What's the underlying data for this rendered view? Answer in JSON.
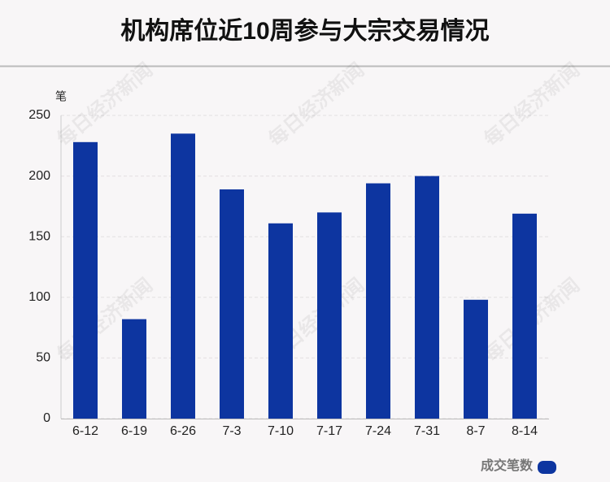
{
  "chart_data": {
    "type": "bar",
    "title": "机构席位近10周参与大宗交易情况",
    "y_unit": "笔",
    "watermark": "每日经济新闻",
    "categories": [
      "6-12",
      "6-19",
      "6-26",
      "7-3",
      "7-10",
      "7-17",
      "7-24",
      "7-31",
      "8-7",
      "8-14"
    ],
    "series": [
      {
        "name": "成交笔数",
        "color": "#0d35a0",
        "values": [
          228,
          82,
          235,
          189,
          161,
          170,
          194,
          200,
          98,
          169
        ]
      }
    ],
    "ylim": [
      0,
      250
    ],
    "yticks": [
      0,
      50,
      100,
      150,
      200,
      250
    ],
    "grid": true,
    "legend": "bottom-right"
  }
}
